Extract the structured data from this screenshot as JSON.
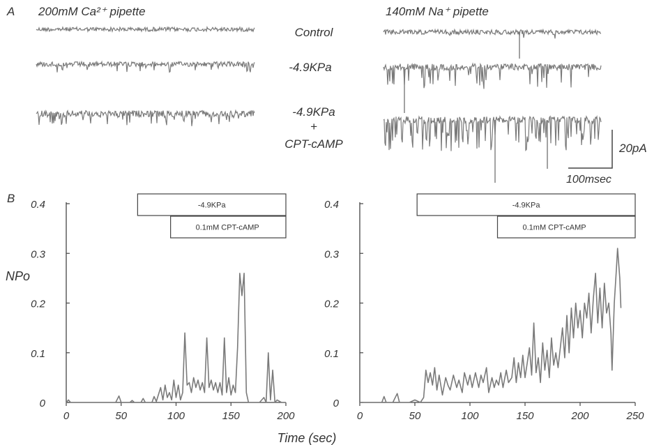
{
  "panel_a": {
    "letter": "A",
    "left_title": "200mM Ca²⁺ pipette",
    "right_title": "140mM Na⁺ pipette",
    "conditions": [
      "Control",
      "-4.9KPa",
      "-4.9KPa",
      "+",
      "CPT-cAMP"
    ],
    "scale_current": "20pA",
    "scale_time": "100msec",
    "trace_color": "#7a7a7a"
  },
  "panel_b": {
    "letter": "B",
    "ylabel": "NPo",
    "xlabel": "Time (sec)"
  },
  "chart_data": [
    {
      "type": "line",
      "panel": "B-left",
      "ylabel": "NPo",
      "xlabel": "Time (sec)",
      "xlim": [
        0,
        200
      ],
      "ylim": [
        0,
        0.4
      ],
      "x_ticks": [
        "0",
        "50",
        "100",
        "150",
        "200"
      ],
      "y_ticks": [
        "0",
        "0.1",
        "0.2",
        "0.3",
        "0.4"
      ],
      "bars": [
        {
          "label": "-4.9KPa",
          "start": 65,
          "end": 200
        },
        {
          "label": "0.1mM  CPT-cAMP",
          "start": 95,
          "end": 200
        }
      ],
      "series": [
        {
          "color": "#7a7a7a",
          "points": [
            [
              0,
              0
            ],
            [
              2,
              0.005
            ],
            [
              4,
              0
            ],
            [
              10,
              0
            ],
            [
              30,
              0
            ],
            [
              45,
              0
            ],
            [
              48,
              0.013
            ],
            [
              50,
              0
            ],
            [
              58,
              0
            ],
            [
              60,
              0.004
            ],
            [
              62,
              0
            ],
            [
              68,
              0
            ],
            [
              70,
              0.008
            ],
            [
              72,
              0
            ],
            [
              78,
              0
            ],
            [
              80,
              0.012
            ],
            [
              82,
              0.002
            ],
            [
              86,
              0.03
            ],
            [
              88,
              0.005
            ],
            [
              90,
              0.035
            ],
            [
              92,
              0.01
            ],
            [
              94,
              0.02
            ],
            [
              96,
              0.005
            ],
            [
              98,
              0.045
            ],
            [
              100,
              0.01
            ],
            [
              102,
              0.035
            ],
            [
              104,
              0.005
            ],
            [
              106,
              0.02
            ],
            [
              108,
              0.14
            ],
            [
              110,
              0.035
            ],
            [
              112,
              0.04
            ],
            [
              114,
              0.02
            ],
            [
              116,
              0.05
            ],
            [
              118,
              0.03
            ],
            [
              120,
              0.045
            ],
            [
              122,
              0.025
            ],
            [
              124,
              0.04
            ],
            [
              126,
              0.02
            ],
            [
              128,
              0.13
            ],
            [
              130,
              0.03
            ],
            [
              132,
              0.045
            ],
            [
              134,
              0.025
            ],
            [
              136,
              0.04
            ],
            [
              138,
              0.02
            ],
            [
              140,
              0.04
            ],
            [
              142,
              0.015
            ],
            [
              144,
              0.13
            ],
            [
              146,
              0.02
            ],
            [
              148,
              0.05
            ],
            [
              150,
              0.015
            ],
            [
              152,
              0.035
            ],
            [
              154,
              0.02
            ],
            [
              156,
              0.11
            ],
            [
              158,
              0.26
            ],
            [
              160,
              0.215
            ],
            [
              162,
              0.26
            ],
            [
              164,
              0.02
            ],
            [
              166,
              0
            ],
            [
              170,
              0
            ],
            [
              176,
              0
            ],
            [
              180,
              0.01
            ],
            [
              182,
              0
            ],
            [
              184,
              0.1
            ],
            [
              186,
              0.005
            ],
            [
              188,
              0.065
            ],
            [
              190,
              0
            ],
            [
              192,
              0.005
            ],
            [
              196,
              0
            ],
            [
              200,
              0
            ]
          ]
        }
      ]
    },
    {
      "type": "line",
      "panel": "B-right",
      "ylabel": "NPo",
      "xlabel": "Time (sec)",
      "xlim": [
        0,
        250
      ],
      "ylim": [
        0,
        0.4
      ],
      "x_ticks": [
        "0",
        "50",
        "100",
        "150",
        "200",
        "250"
      ],
      "y_ticks": [
        "0",
        "0.1",
        "0.2",
        "0.3",
        "0.4"
      ],
      "bars": [
        {
          "label": "-4.9KPa",
          "start": 52,
          "end": 250
        },
        {
          "label": "0.1mM  CPT-cAMP",
          "start": 125,
          "end": 250
        }
      ],
      "series": [
        {
          "color": "#7a7a7a",
          "points": [
            [
              0,
              0
            ],
            [
              10,
              0
            ],
            [
              20,
              0
            ],
            [
              22,
              0.012
            ],
            [
              24,
              0
            ],
            [
              30,
              0
            ],
            [
              34,
              0.018
            ],
            [
              36,
              0
            ],
            [
              45,
              0
            ],
            [
              50,
              0.005
            ],
            [
              55,
              0
            ],
            [
              58,
              0.01
            ],
            [
              60,
              0.065
            ],
            [
              62,
              0.04
            ],
            [
              64,
              0.06
            ],
            [
              66,
              0.035
            ],
            [
              68,
              0.07
            ],
            [
              70,
              0.025
            ],
            [
              72,
              0.055
            ],
            [
              75,
              0.015
            ],
            [
              78,
              0.05
            ],
            [
              80,
              0.035
            ],
            [
              82,
              0.025
            ],
            [
              85,
              0.055
            ],
            [
              88,
              0.03
            ],
            [
              90,
              0.045
            ],
            [
              93,
              0.02
            ],
            [
              95,
              0.06
            ],
            [
              98,
              0.035
            ],
            [
              100,
              0.055
            ],
            [
              102,
              0.03
            ],
            [
              105,
              0.06
            ],
            [
              108,
              0.03
            ],
            [
              110,
              0.055
            ],
            [
              112,
              0.04
            ],
            [
              115,
              0.07
            ],
            [
              117,
              0.02
            ],
            [
              120,
              0.05
            ],
            [
              122,
              0.03
            ],
            [
              124,
              0.045
            ],
            [
              126,
              0.035
            ],
            [
              128,
              0.06
            ],
            [
              130,
              0.03
            ],
            [
              133,
              0.065
            ],
            [
              135,
              0.04
            ],
            [
              138,
              0.05
            ],
            [
              140,
              0.09
            ],
            [
              142,
              0.04
            ],
            [
              144,
              0.08
            ],
            [
              146,
              0.05
            ],
            [
              148,
              0.095
            ],
            [
              150,
              0.05
            ],
            [
              152,
              0.08
            ],
            [
              154,
              0.11
            ],
            [
              156,
              0.055
            ],
            [
              158,
              0.16
            ],
            [
              160,
              0.06
            ],
            [
              162,
              0.09
            ],
            [
              164,
              0.04
            ],
            [
              166,
              0.12
            ],
            [
              168,
              0.065
            ],
            [
              170,
              0.105
            ],
            [
              172,
              0.05
            ],
            [
              174,
              0.13
            ],
            [
              176,
              0.075
            ],
            [
              178,
              0.1
            ],
            [
              180,
              0.07
            ],
            [
              182,
              0.11
            ],
            [
              184,
              0.15
            ],
            [
              186,
              0.09
            ],
            [
              188,
              0.175
            ],
            [
              190,
              0.1
            ],
            [
              192,
              0.19
            ],
            [
              194,
              0.13
            ],
            [
              196,
              0.2
            ],
            [
              198,
              0.15
            ],
            [
              200,
              0.185
            ],
            [
              202,
              0.13
            ],
            [
              204,
              0.2
            ],
            [
              206,
              0.17
            ],
            [
              208,
              0.22
            ],
            [
              210,
              0.14
            ],
            [
              212,
              0.21
            ],
            [
              214,
              0.26
            ],
            [
              216,
              0.16
            ],
            [
              218,
              0.23
            ],
            [
              220,
              0.15
            ],
            [
              222,
              0.24
            ],
            [
              224,
              0.18
            ],
            [
              226,
              0.2
            ],
            [
              228,
              0.14
            ],
            [
              229,
              0.065
            ],
            [
              231,
              0.2
            ],
            [
              233,
              0.27
            ],
            [
              234,
              0.31
            ],
            [
              236,
              0.25
            ],
            [
              237,
              0.19
            ]
          ]
        }
      ]
    }
  ]
}
